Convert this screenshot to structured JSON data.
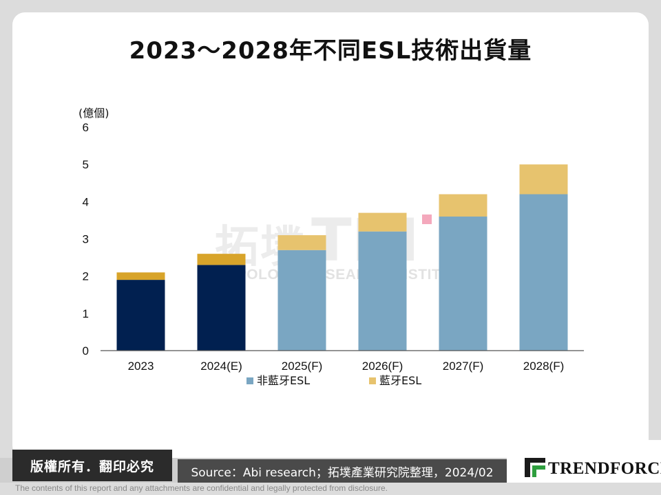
{
  "page": {
    "title": "2023～2028年不同ESL技術出貨量",
    "copyright_label": "版權所有．翻印必究",
    "source": "Source：Abi research；拓墣產業研究院整理，2024/02",
    "brand": "TRENDFORCE",
    "disclaimer": "The contents of this report and any attachments are confidential and legally protected from disclosure.",
    "watermark": {
      "cn": "拓墣",
      "en_short": "TRI",
      "en_full": "TOPOLOGY RESEARCH INSTITUTE"
    }
  },
  "chart_data": {
    "type": "bar",
    "stacked": true,
    "title": "2023～2028年不同ESL技術出貨量",
    "y_unit": "(億個)",
    "ylim": [
      0,
      6
    ],
    "yticks": [
      0,
      1,
      2,
      3,
      4,
      5,
      6
    ],
    "grid": false,
    "legend_position": "bottom",
    "categories": [
      "2023",
      "2024(E)",
      "2025(F)",
      "2026(F)",
      "2027(F)",
      "2028(F)"
    ],
    "series": [
      {
        "name": "非藍牙ESL",
        "values": [
          1.9,
          2.3,
          2.7,
          3.2,
          3.6,
          4.2
        ],
        "color": "#7aa6c2"
      },
      {
        "name": "藍牙ESL",
        "values": [
          0.2,
          0.3,
          0.4,
          0.5,
          0.6,
          0.8
        ],
        "color": "#e7c36e"
      }
    ],
    "highlight": {
      "categories": [
        "2023",
        "2024(E)"
      ],
      "colors": [
        "#012050",
        "#d8a42a"
      ]
    }
  }
}
